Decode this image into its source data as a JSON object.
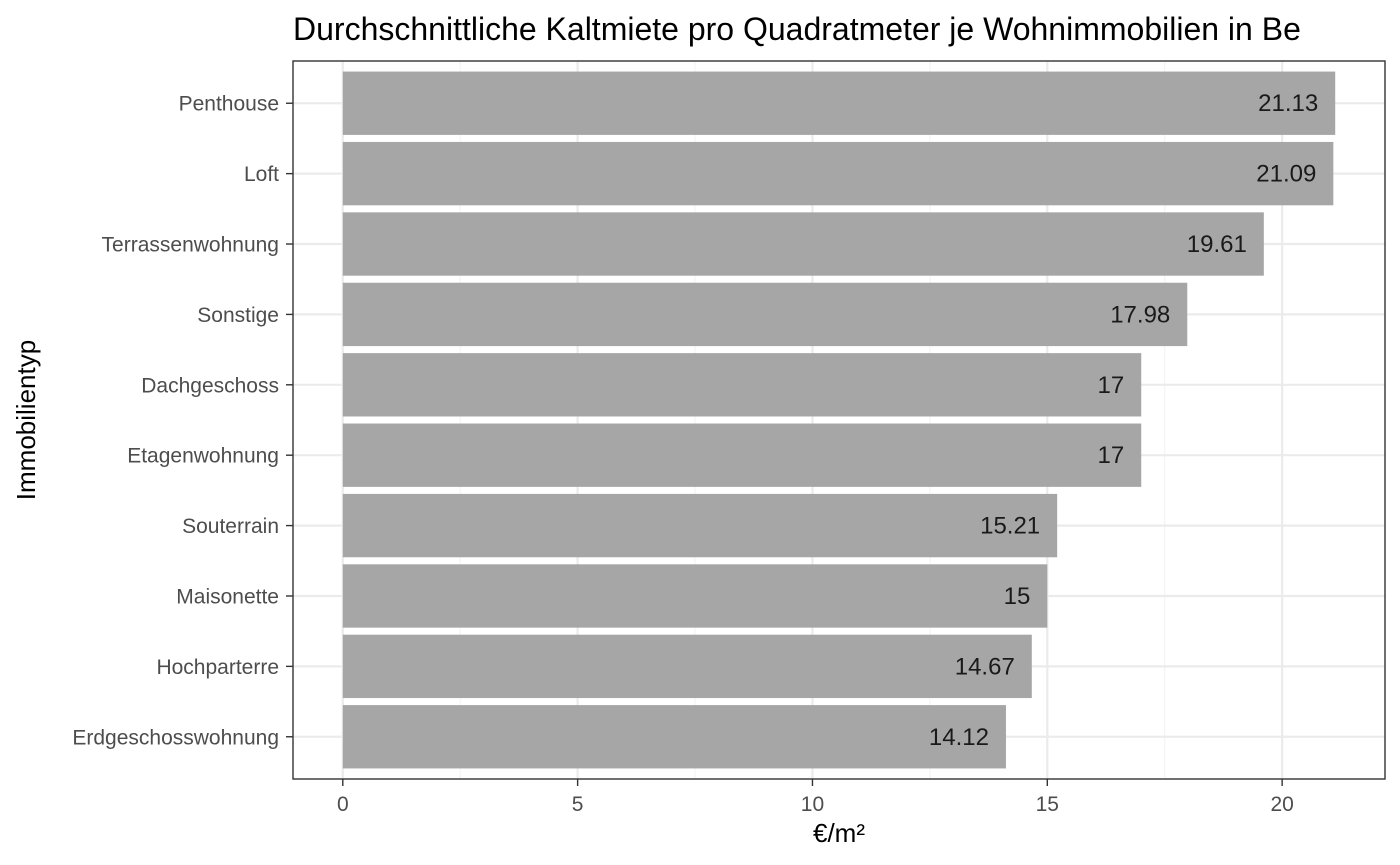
{
  "chart_data": {
    "type": "bar",
    "orientation": "horizontal",
    "title": "Durchschnittliche Kaltmiete pro Quadratmeter je Wohnimmobilien in Be",
    "xlabel": "€/m²",
    "ylabel": "Immobilientyp",
    "categories": [
      "Penthouse",
      "Loft",
      "Terrassenwohnung",
      "Sonstige",
      "Dachgeschoss",
      "Etagenwohnung",
      "Souterrain",
      "Maisonette",
      "Hochparterre",
      "Erdgeschosswohnung"
    ],
    "values": [
      21.13,
      21.09,
      19.61,
      17.98,
      17,
      17,
      15.21,
      15,
      14.67,
      14.12
    ],
    "value_labels": [
      "21.13",
      "21.09",
      "19.61",
      "17.98",
      "17",
      "17",
      "15.21",
      "15",
      "14.67",
      "14.12"
    ],
    "xlim": [
      -1.06,
      22.19
    ],
    "x_ticks": [
      0,
      5,
      10,
      15,
      20
    ],
    "x_tick_labels": [
      "0",
      "5",
      "10",
      "15",
      "20"
    ],
    "grid": true,
    "legend": "none",
    "colors": {
      "bar": "#a6a6a6",
      "grid_major": "#ebebeb",
      "grid_minor": "#f3f3f3",
      "panel_border": "#333333",
      "axis_text": "#4d4d4d",
      "data_label": "#1a1a1a"
    }
  }
}
